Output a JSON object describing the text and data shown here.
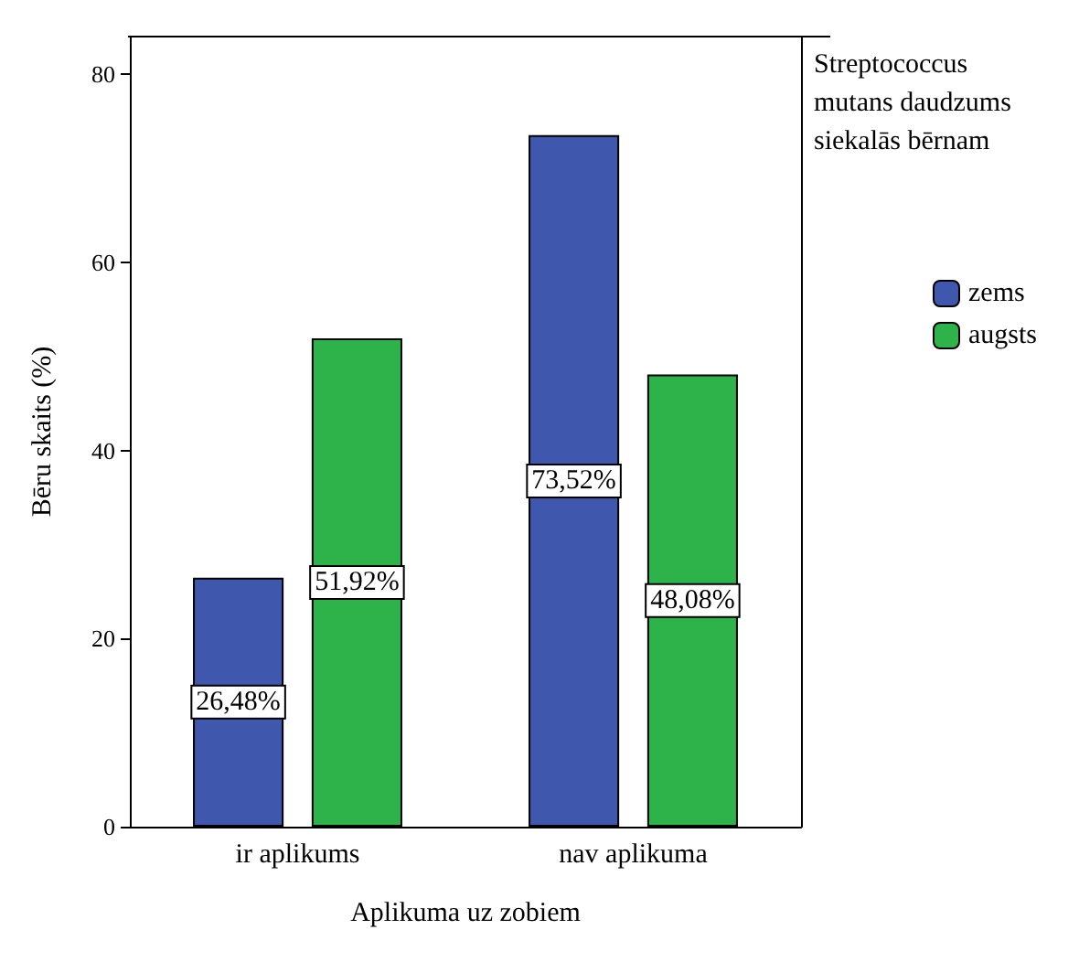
{
  "chart_data": {
    "type": "bar",
    "xlabel": "Aplikuma uz zobiem",
    "ylabel": "Bēru skaits (%)",
    "legend_title": "Streptococcus mutans daudzums siekalās bērnam",
    "categories": [
      "ir aplikums",
      "nav aplikuma"
    ],
    "series": [
      {
        "name": "zems",
        "color": "#3f57ad",
        "values": [
          26.48,
          73.52
        ],
        "value_labels": [
          "26,48%",
          "73,52%"
        ]
      },
      {
        "name": "augsts",
        "color": "#2db34a",
        "values": [
          51.92,
          48.08
        ],
        "value_labels": [
          "51,92%",
          "48,08%"
        ]
      }
    ],
    "ylim": [
      0,
      84
    ],
    "yticks": [
      0,
      20,
      40,
      60,
      80
    ],
    "grid": false,
    "legend": "right"
  }
}
